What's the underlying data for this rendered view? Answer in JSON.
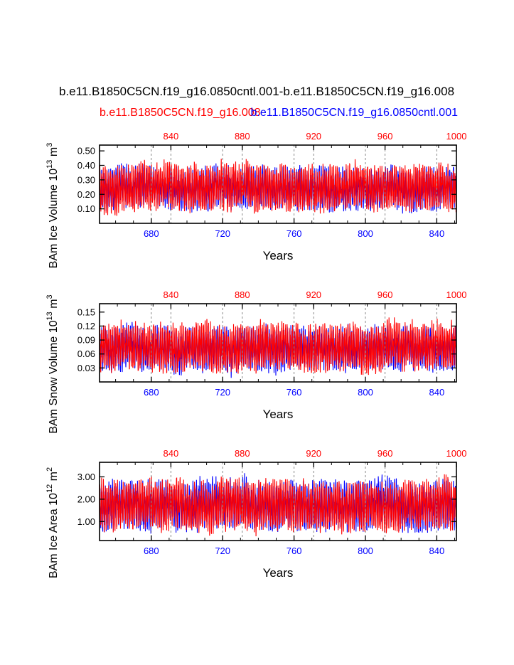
{
  "title": "b.e11.B1850C5CN.f19_g16.0850cntl.001-b.e11.B1850C5CN.f19_g16.008",
  "legend": {
    "red_label": "b.e11.B1850C5CN.f19_g16.008",
    "blue_label": "b.e11.B1850C5CN.f19_g16.0850cntl.001"
  },
  "colors": {
    "blue": "#0000ff",
    "red": "#ff0000",
    "axis": "#000000",
    "grid": "#888888"
  },
  "chart_data": [
    {
      "type": "line",
      "ylabel_main": "BAm Ice Volume 10",
      "ylabel_exp": "13",
      "ylabel_unit": " m",
      "ylabel_unit_exp": "3",
      "xlabel": "Years",
      "ylim": [
        0.0,
        0.54
      ],
      "yticks": [
        "0.10",
        "0.20",
        "0.30",
        "0.40",
        "0.50"
      ],
      "ytick_values": [
        0.1,
        0.2,
        0.3,
        0.4,
        0.5
      ],
      "x_bottom": {
        "range": [
          651,
          851
        ],
        "ticks": [
          "680",
          "720",
          "760",
          "800",
          "840"
        ],
        "tick_values": [
          680,
          720,
          760,
          800,
          840
        ],
        "color": "#0000ff"
      },
      "x_top": {
        "range": [
          800,
          1000
        ],
        "ticks": [
          "840",
          "880",
          "920",
          "960",
          "1000"
        ],
        "tick_values": [
          840,
          880,
          920,
          960,
          1000
        ],
        "color": "#ff0000"
      },
      "series": [
        {
          "name": "b.e11.B1850C5CN.f19_g16.0850cntl.001",
          "color": "#0000ff",
          "mean": 0.24,
          "amp": 0.14,
          "seed": 11
        },
        {
          "name": "b.e11.B1850C5CN.f19_g16.008",
          "color": "#ff0000",
          "mean": 0.25,
          "amp": 0.15,
          "seed": 23
        }
      ]
    },
    {
      "type": "line",
      "ylabel_main": "BAm Snow Volume 10",
      "ylabel_exp": "13",
      "ylabel_unit": " m",
      "ylabel_unit_exp": "3",
      "xlabel": "Years",
      "ylim": [
        0.0,
        0.168
      ],
      "yticks": [
        "0.03",
        "0.06",
        "0.09",
        "0.12",
        "0.15"
      ],
      "ytick_values": [
        0.03,
        0.06,
        0.09,
        0.12,
        0.15
      ],
      "x_bottom": {
        "range": [
          651,
          851
        ],
        "ticks": [
          "680",
          "720",
          "760",
          "800",
          "840"
        ],
        "tick_values": [
          680,
          720,
          760,
          800,
          840
        ],
        "color": "#0000ff"
      },
      "x_top": {
        "range": [
          800,
          1000
        ],
        "ticks": [
          "840",
          "880",
          "920",
          "960",
          "1000"
        ],
        "tick_values": [
          840,
          880,
          920,
          960,
          1000
        ],
        "color": "#ff0000"
      },
      "series": [
        {
          "name": "b.e11.B1850C5CN.f19_g16.0850cntl.001",
          "color": "#0000ff",
          "mean": 0.072,
          "amp": 0.045,
          "seed": 31
        },
        {
          "name": "b.e11.B1850C5CN.f19_g16.008",
          "color": "#ff0000",
          "mean": 0.075,
          "amp": 0.048,
          "seed": 47
        }
      ]
    },
    {
      "type": "line",
      "ylabel_main": "BAm Ice Area 10",
      "ylabel_exp": "12",
      "ylabel_unit": " m",
      "ylabel_unit_exp": "2",
      "xlabel": "Years",
      "ylim": [
        0.15,
        3.65
      ],
      "yticks": [
        "1.00",
        "2.00",
        "3.00"
      ],
      "ytick_values": [
        1.0,
        2.0,
        3.0
      ],
      "x_bottom": {
        "range": [
          651,
          851
        ],
        "ticks": [
          "680",
          "720",
          "760",
          "800",
          "840"
        ],
        "tick_values": [
          680,
          720,
          760,
          800,
          840
        ],
        "color": "#0000ff"
      },
      "x_top": {
        "range": [
          800,
          1000
        ],
        "ticks": [
          "840",
          "880",
          "920",
          "960",
          "1000"
        ],
        "tick_values": [
          840,
          880,
          920,
          960,
          1000
        ],
        "color": "#ff0000"
      },
      "series": [
        {
          "name": "b.e11.B1850C5CN.f19_g16.0850cntl.001",
          "color": "#0000ff",
          "mean": 1.75,
          "amp": 1.05,
          "seed": 53
        },
        {
          "name": "b.e11.B1850C5CN.f19_g16.008",
          "color": "#ff0000",
          "mean": 1.7,
          "amp": 1.05,
          "seed": 71
        }
      ]
    }
  ]
}
